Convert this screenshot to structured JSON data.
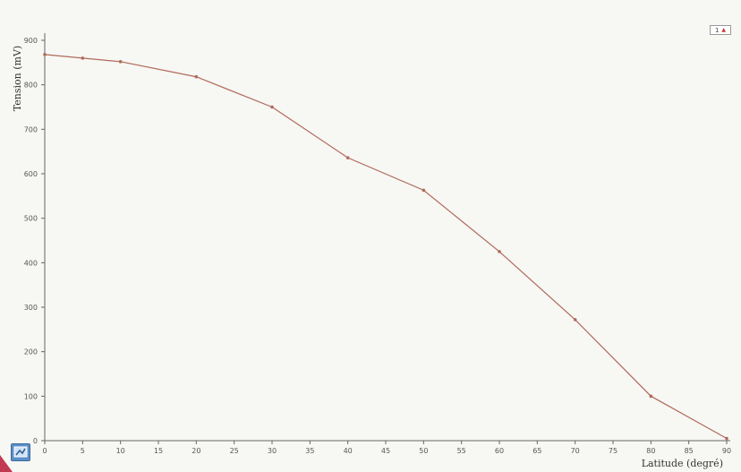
{
  "chart_data": {
    "type": "line",
    "xlabel": "Latitude (degré)",
    "ylabel": "Tension (mV)",
    "x_ticks": [
      "0",
      "5",
      "10",
      "15",
      "20",
      "25",
      "30",
      "35",
      "40",
      "45",
      "50",
      "55",
      "60",
      "65",
      "70",
      "75",
      "80",
      "85",
      "90"
    ],
    "y_ticks": [
      "0",
      "100",
      "200",
      "300",
      "400",
      "500",
      "600",
      "700",
      "800",
      "900"
    ],
    "xlim": [
      0,
      90
    ],
    "ylim": [
      0,
      900
    ],
    "grid": false,
    "series": [
      {
        "x": [
          0,
          5,
          10,
          20,
          30,
          40,
          50,
          60,
          70,
          80,
          90
        ],
        "y": [
          868,
          860,
          852,
          818,
          750,
          636,
          563,
          425,
          272,
          100,
          5
        ],
        "color": "#b06a5a"
      }
    ]
  },
  "legend_button": {
    "label": "1",
    "arrow": "▲"
  }
}
